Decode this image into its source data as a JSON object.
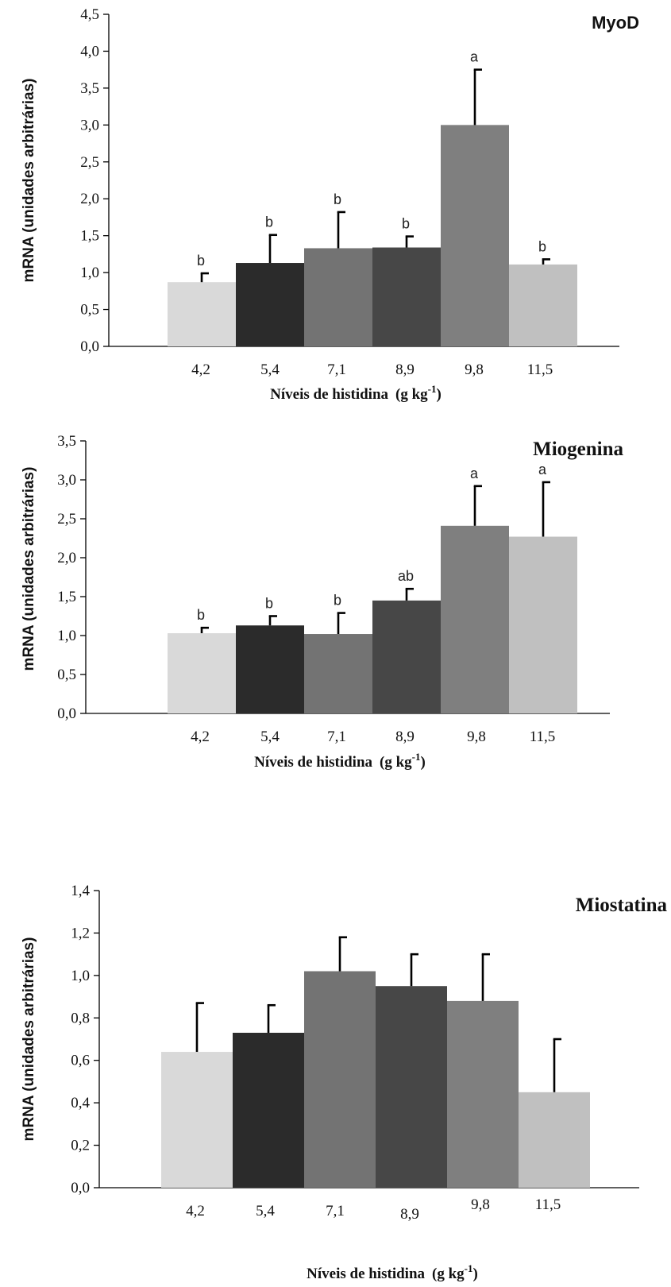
{
  "chart_data": [
    {
      "type": "bar",
      "title": "MyoD",
      "xlabel": "Níveis de histidina",
      "xlabel_unit_base": "(g kg",
      "xlabel_unit_sup": "-1",
      "xlabel_unit_close": ")",
      "ylabel": "mRNA (unidades arbitrárias)",
      "ylim": [
        0,
        4.5
      ],
      "yticks": [
        "0,0",
        "0,5",
        "1,0",
        "1,5",
        "2,0",
        "2,5",
        "3,0",
        "3,5",
        "4,0",
        "4,5"
      ],
      "categories": [
        "4,2",
        "5,4",
        "7,1",
        "8,9",
        "9,8",
        "11,5"
      ],
      "values": [
        0.87,
        1.13,
        1.33,
        1.34,
        3.0,
        1.11
      ],
      "errors": [
        0.12,
        0.38,
        0.49,
        0.15,
        0.75,
        0.07
      ],
      "labels": [
        "b",
        "b",
        "b",
        "b",
        "a",
        "b"
      ]
    },
    {
      "type": "bar",
      "title": "Miogenina",
      "xlabel": "Níveis de histidina",
      "xlabel_unit_base": "(g kg",
      "xlabel_unit_sup": "-1",
      "xlabel_unit_close": ")",
      "ylabel": "mRNA  (unidades arbitrárias)",
      "ylim": [
        0,
        3.5
      ],
      "yticks": [
        "0,0",
        "0,5",
        "1,0",
        "1,5",
        "2,0",
        "2,5",
        "3,0",
        "3,5"
      ],
      "categories": [
        "4,2",
        "5,4",
        "7,1",
        "8,9",
        "9,8",
        "11,5"
      ],
      "values": [
        1.03,
        1.13,
        1.02,
        1.45,
        2.41,
        2.27
      ],
      "errors": [
        0.07,
        0.12,
        0.27,
        0.15,
        0.51,
        0.7
      ],
      "labels": [
        "b",
        "b",
        "b",
        "ab",
        "a",
        "a"
      ]
    },
    {
      "type": "bar",
      "title": "Miostatina",
      "xlabel": "Níveis de histidina",
      "xlabel_unit_base": "(g kg",
      "xlabel_unit_sup": "-1",
      "xlabel_unit_close": ")",
      "ylabel": "mRNA (unidades arbitrárias)",
      "ylim": [
        0,
        1.4
      ],
      "yticks": [
        "0,0",
        "0,2",
        "0,4",
        "0,6",
        "0,8",
        "1,0",
        "1,2",
        "1,4"
      ],
      "categories": [
        "4,2",
        "5,4",
        "7,1",
        "8,9",
        "9,8",
        "11,5"
      ],
      "values": [
        0.64,
        0.73,
        1.02,
        0.95,
        0.88,
        0.45
      ],
      "errors": [
        0.23,
        0.13,
        0.16,
        0.15,
        0.22,
        0.25
      ],
      "labels": [
        "",
        "",
        "",
        "",
        "",
        ""
      ]
    }
  ],
  "colors": {
    "bars": [
      "#d9d9d9",
      "#2b2b2b",
      "#737373",
      "#474747",
      "#7f7f7f",
      "#c0c0c0"
    ],
    "error_bars": "#000000",
    "axes": "#000000"
  }
}
